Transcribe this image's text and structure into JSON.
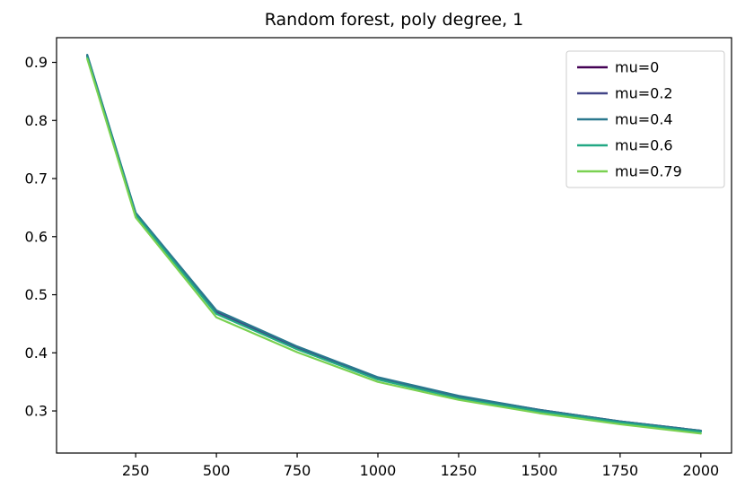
{
  "chart_data": {
    "type": "line",
    "title": "Random forest, poly degree, 1",
    "xlabel": "",
    "ylabel": "",
    "grid": false,
    "legend_position": "upper right",
    "xlim": [
      5,
      2095
    ],
    "ylim": [
      0.2275,
      0.9425
    ],
    "xticks": [
      250,
      500,
      750,
      1000,
      1250,
      1500,
      1750,
      2000
    ],
    "yticks": [
      "0.3",
      "0.4",
      "0.5",
      "0.6",
      "0.7",
      "0.8",
      "0.9"
    ],
    "x": [
      100,
      250,
      500,
      750,
      1000,
      1250,
      1500,
      1750,
      2000
    ],
    "series": [
      {
        "name": "mu=0",
        "color": "#440154",
        "values": [
          0.912,
          0.64,
          0.472,
          0.41,
          0.357,
          0.325,
          0.302,
          0.282,
          0.266
        ]
      },
      {
        "name": "mu=0.2",
        "color": "#414487",
        "values": [
          0.91,
          0.638,
          0.47,
          0.409,
          0.356,
          0.324,
          0.301,
          0.281,
          0.265
        ]
      },
      {
        "name": "mu=0.4",
        "color": "#2a788e",
        "values": [
          0.913,
          0.641,
          0.473,
          0.411,
          0.358,
          0.326,
          0.302,
          0.282,
          0.266
        ]
      },
      {
        "name": "mu=0.6",
        "color": "#22a884",
        "values": [
          0.909,
          0.637,
          0.467,
          0.406,
          0.354,
          0.322,
          0.299,
          0.28,
          0.264
        ]
      },
      {
        "name": "mu=0.79",
        "color": "#7ad151",
        "values": [
          0.906,
          0.633,
          0.461,
          0.401,
          0.35,
          0.319,
          0.296,
          0.277,
          0.261
        ]
      }
    ],
    "frame_color": "#000000",
    "text_color": "#000000",
    "legend_border_color": "#cccccc",
    "background_color": "#ffffff"
  }
}
